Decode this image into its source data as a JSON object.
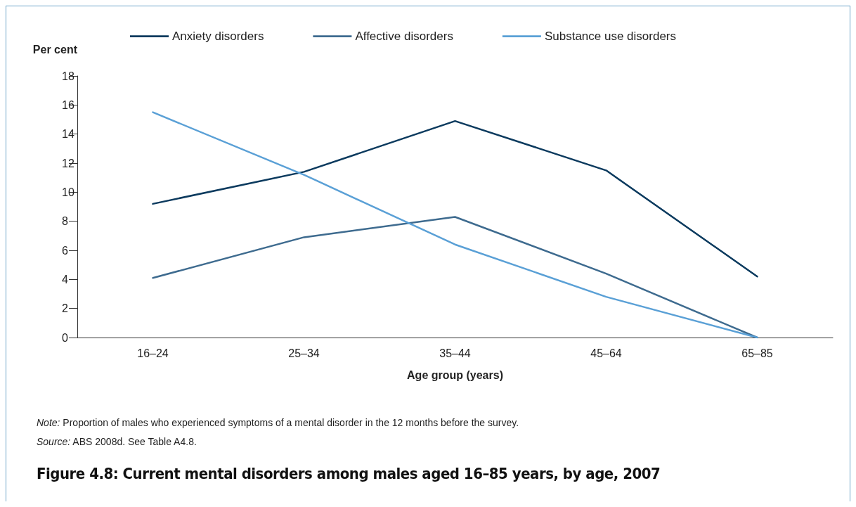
{
  "chart_data": {
    "type": "line",
    "title": "Figure 4.8: Current mental disorders among males aged 16–85 years, by age, 2007",
    "xlabel": "Age group (years)",
    "ylabel": "Per cent",
    "categories": [
      "16–24",
      "25–34",
      "35–44",
      "45–64",
      "65–85"
    ],
    "series": [
      {
        "name": "Anxiety disorders",
        "color": "#0b3a5e",
        "values": [
          9.2,
          11.4,
          14.9,
          11.5,
          4.2
        ]
      },
      {
        "name": "Affective disorders",
        "color": "#3e6b8f",
        "values": [
          4.1,
          6.9,
          8.3,
          4.4,
          0
        ]
      },
      {
        "name": "Substance use disorders",
        "color": "#5aa0d6",
        "values": [
          15.5,
          11.2,
          6.4,
          2.8,
          0
        ]
      }
    ],
    "ylim": [
      0,
      18
    ],
    "yticks": [
      0,
      2,
      4,
      6,
      8,
      10,
      12,
      14,
      16,
      18
    ],
    "grid": false,
    "legend": "top",
    "marker": "none",
    "line_style": "solid",
    "annotations": [
      "Note: Proportion of males who experienced symptoms of a mental disorder in the 12 months before the survey.",
      "Source: ABS 2008d. See Table A4.8."
    ]
  }
}
